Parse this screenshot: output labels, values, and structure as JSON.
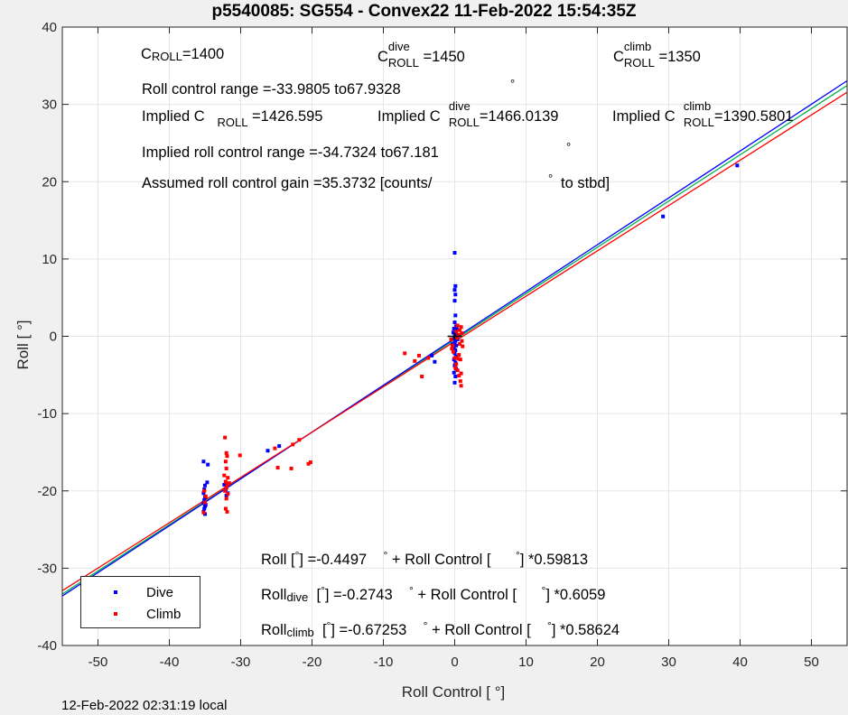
{
  "title": "p5540085: SG554 - Convex22 11-Feb-2022 15:54:35Z",
  "footer": "12-Feb-2022 02:31:19 local",
  "annotations": {
    "c_roll": "C",
    "c_roll_sub": "ROLL",
    "c_roll_val": "=1400",
    "c_dive": "C",
    "c_dive_sup": "dive",
    "c_dive_sub": "ROLL",
    "c_dive_val": "=1450",
    "c_climb": "C",
    "c_climb_sup": "climb",
    "c_climb_sub": "ROLL",
    "c_climb_val": "=1350",
    "range_text": "Roll control range =-33.9805 to67.9328",
    "range_deg": "°",
    "implied_c_label": "Implied C",
    "implied_c_sub": "ROLL",
    "implied_c_val": "=1426.595",
    "implied_dive_label": "Implied C",
    "implied_dive_sup": "dive",
    "implied_dive_sub": "ROLL",
    "implied_dive_val": "=1466.0139",
    "implied_climb_label": "Implied C",
    "implied_climb_sup": "climb",
    "implied_climb_sub": "ROLL",
    "implied_climb_val": "=1390.5801",
    "implied_range_text": "Implied roll control range =-34.7324 to67.181",
    "implied_range_deg": "°",
    "gain_text": "Assumed roll control gain =35.3732 [counts/",
    "gain_deg": "°",
    "gain_tail": "to stbd]",
    "fit_all_a": "Roll [",
    "fit_all_deg1": "°",
    "fit_all_b": "] =-0.4497",
    "fit_all_deg2": "°",
    "fit_all_c": "+ Roll Control [",
    "fit_all_deg3": "°",
    "fit_all_d": "] *0.59813",
    "fit_dive_a": "Roll",
    "fit_dive_sub": "dive",
    "fit_dive_b": "[",
    "fit_dive_deg1": "°",
    "fit_dive_c": "] =-0.2743",
    "fit_dive_deg2": "°",
    "fit_dive_d": "+ Roll Control [",
    "fit_dive_deg3": "°",
    "fit_dive_e": "] *0.6059",
    "fit_climb_a": "Roll",
    "fit_climb_sub": "climb",
    "fit_climb_b": "[",
    "fit_climb_deg1": "°",
    "fit_climb_c": "] =-0.67253",
    "fit_climb_deg2": "°",
    "fit_climb_d": "+ Roll Control [",
    "fit_climb_deg3": "°",
    "fit_climb_e": "] *0.58624"
  },
  "legend": {
    "dive": "Dive",
    "climb": "Climb",
    "dive_color": "#0000ff",
    "climb_color": "#ff0000"
  },
  "chart_data": {
    "type": "scatter",
    "xlabel": "Roll Control [   °]",
    "ylabel": "Roll [   °]",
    "xlim": [
      -55,
      55
    ],
    "ylim": [
      -40,
      40
    ],
    "xticks": [
      -50,
      -40,
      -30,
      -20,
      -10,
      0,
      10,
      20,
      30,
      40,
      50
    ],
    "yticks": [
      -40,
      -30,
      -20,
      -10,
      0,
      10,
      20,
      30,
      40
    ],
    "grid": true,
    "legend_position": "bottom-left",
    "fit_lines": [
      {
        "name": "all",
        "color": "#00b050",
        "intercept": -0.4497,
        "slope": 0.59813
      },
      {
        "name": "dive",
        "color": "#0000ff",
        "intercept": -0.2743,
        "slope": 0.6059
      },
      {
        "name": "climb",
        "color": "#ff0000",
        "intercept": -0.67253,
        "slope": 0.58624
      }
    ],
    "center_marker": {
      "x": 0,
      "y": 0,
      "color": "#000000"
    },
    "series": [
      {
        "name": "Dive",
        "color": "#0000ff",
        "points": [
          [
            -35.2,
            -16.2
          ],
          [
            -35.0,
            -19.3
          ],
          [
            -35.1,
            -19.8
          ],
          [
            -35.2,
            -20.3
          ],
          [
            -35.0,
            -20.8
          ],
          [
            -35.1,
            -21.2
          ],
          [
            -35.2,
            -21.6
          ],
          [
            -35.0,
            -22.0
          ],
          [
            -35.1,
            -22.3
          ],
          [
            -35.2,
            -22.7
          ],
          [
            -35.0,
            -23.0
          ],
          [
            -34.9,
            -21.8
          ],
          [
            -34.6,
            -16.6
          ],
          [
            -34.7,
            -18.9
          ],
          [
            -32.3,
            -19.2
          ],
          [
            -32.1,
            -19.8
          ],
          [
            -31.8,
            -20.3
          ],
          [
            -32.0,
            -20.6
          ],
          [
            -26.2,
            -14.8
          ],
          [
            -24.6,
            -14.2
          ],
          [
            -3.2,
            -2.5
          ],
          [
            -2.8,
            -3.3
          ],
          [
            0.0,
            10.8
          ],
          [
            0.1,
            6.5
          ],
          [
            0.0,
            6.0
          ],
          [
            0.1,
            5.4
          ],
          [
            0.0,
            4.6
          ],
          [
            0.1,
            2.7
          ],
          [
            0.0,
            1.8
          ],
          [
            0.2,
            1.3
          ],
          [
            -0.1,
            1.0
          ],
          [
            0.1,
            0.6
          ],
          [
            0.0,
            0.3
          ],
          [
            0.2,
            0.0
          ],
          [
            -0.1,
            -0.3
          ],
          [
            0.1,
            -0.6
          ],
          [
            0.0,
            -0.9
          ],
          [
            0.2,
            -1.2
          ],
          [
            -0.1,
            -1.5
          ],
          [
            0.1,
            -1.8
          ],
          [
            0.0,
            -2.2
          ],
          [
            0.2,
            -2.6
          ],
          [
            -0.1,
            -3.0
          ],
          [
            0.1,
            -3.4
          ],
          [
            0.0,
            -3.8
          ],
          [
            0.2,
            -4.2
          ],
          [
            -0.1,
            -4.7
          ],
          [
            0.1,
            -5.2
          ],
          [
            0.0,
            -6.0
          ],
          [
            0.3,
            0.9
          ],
          [
            0.4,
            -0.4
          ],
          [
            -0.3,
            -1.0
          ],
          [
            -0.2,
            0.5
          ],
          [
            29.2,
            15.5
          ],
          [
            39.6,
            22.1
          ]
        ]
      },
      {
        "name": "Climb",
        "color": "#ff0000",
        "points": [
          [
            -35.2,
            -22.8
          ],
          [
            -35.0,
            -21.5
          ],
          [
            -34.9,
            -20.7
          ],
          [
            -35.1,
            -20.0
          ],
          [
            -32.2,
            -13.1
          ],
          [
            -32.0,
            -15.1
          ],
          [
            -31.9,
            -15.5
          ],
          [
            -32.1,
            -16.2
          ],
          [
            -32.0,
            -17.1
          ],
          [
            -31.8,
            -18.3
          ],
          [
            -32.1,
            -18.8
          ],
          [
            -31.9,
            -19.2
          ],
          [
            -32.0,
            -19.6
          ],
          [
            -32.2,
            -20.0
          ],
          [
            -31.8,
            -20.4
          ],
          [
            -32.0,
            -21.0
          ],
          [
            -32.1,
            -22.3
          ],
          [
            -31.9,
            -22.7
          ],
          [
            -31.6,
            -19.0
          ],
          [
            -32.3,
            -18.0
          ],
          [
            -30.1,
            -15.4
          ],
          [
            -25.2,
            -14.5
          ],
          [
            -24.8,
            -17.0
          ],
          [
            -22.9,
            -17.1
          ],
          [
            -22.7,
            -14.0
          ],
          [
            -21.8,
            -13.4
          ],
          [
            -20.5,
            -16.5
          ],
          [
            -20.2,
            -16.3
          ],
          [
            -7.0,
            -2.2
          ],
          [
            -5.6,
            -3.2
          ],
          [
            -5.0,
            -2.5
          ],
          [
            -4.6,
            -5.2
          ],
          [
            -3.7,
            -2.8
          ],
          [
            -0.5,
            -0.4
          ],
          [
            -0.3,
            -1.2
          ],
          [
            -0.2,
            -2.0
          ],
          [
            0.0,
            -2.8
          ],
          [
            0.2,
            -3.6
          ],
          [
            0.4,
            -4.4
          ],
          [
            0.6,
            -5.1
          ],
          [
            0.8,
            -5.8
          ],
          [
            0.9,
            -6.4
          ],
          [
            0.5,
            0.2
          ],
          [
            0.7,
            0.8
          ],
          [
            0.9,
            1.2
          ],
          [
            1.0,
            -0.6
          ],
          [
            1.1,
            -1.3
          ],
          [
            0.3,
            -0.2
          ],
          [
            0.6,
            -2.4
          ],
          [
            0.8,
            -3.0
          ],
          [
            0.4,
            1.4
          ],
          [
            0.2,
            0.6
          ],
          [
            -0.4,
            -1.6
          ],
          [
            1.0,
            0.4
          ],
          [
            0.7,
            -1.0
          ],
          [
            0.1,
            -4.1
          ],
          [
            0.5,
            -2.9
          ],
          [
            0.9,
            -4.8
          ]
        ]
      }
    ]
  }
}
